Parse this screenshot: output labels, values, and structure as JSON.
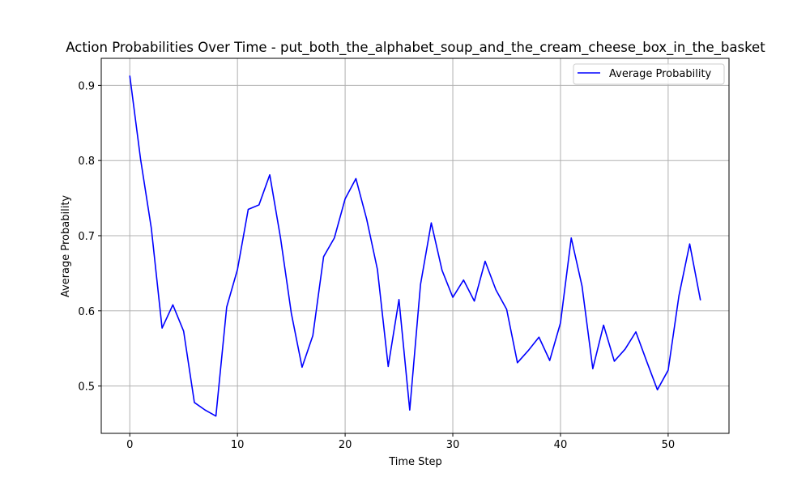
{
  "chart_data": {
    "type": "line",
    "title": "Action Probabilities Over Time - put_both_the_alphabet_soup_and_the_cream_cheese_box_in_the_basket",
    "xlabel": "Time Step",
    "ylabel": "Average Probability",
    "xlim": [
      -2.65,
      55.65
    ],
    "ylim": [
      0.437,
      0.936
    ],
    "x_ticks": [
      0,
      10,
      20,
      30,
      40,
      50
    ],
    "y_ticks": [
      0.5,
      0.6,
      0.7,
      0.8,
      0.9
    ],
    "grid": true,
    "legend_position": "top-right",
    "colors": {
      "series": "#0000ff",
      "grid": "#b0b0b0"
    },
    "series": [
      {
        "name": "Average Probability",
        "x": [
          0,
          1,
          2,
          3,
          4,
          5,
          6,
          7,
          8,
          9,
          10,
          11,
          12,
          13,
          14,
          15,
          16,
          17,
          18,
          19,
          20,
          21,
          22,
          23,
          24,
          25,
          26,
          27,
          28,
          29,
          30,
          31,
          32,
          33,
          34,
          35,
          36,
          37,
          38,
          39,
          40,
          41,
          42,
          43,
          44,
          45,
          46,
          47,
          48,
          49,
          50,
          51,
          52,
          53
        ],
        "values": [
          0.913,
          0.802,
          0.71,
          0.577,
          0.608,
          0.573,
          0.478,
          0.468,
          0.46,
          0.605,
          0.655,
          0.735,
          0.741,
          0.781,
          0.697,
          0.597,
          0.525,
          0.567,
          0.672,
          0.697,
          0.749,
          0.776,
          0.722,
          0.655,
          0.526,
          0.615,
          0.468,
          0.635,
          0.717,
          0.654,
          0.618,
          0.641,
          0.613,
          0.666,
          0.628,
          0.602,
          0.531,
          0.547,
          0.565,
          0.534,
          0.584,
          0.697,
          0.633,
          0.523,
          0.581,
          0.533,
          0.549,
          0.572,
          0.533,
          0.495,
          0.521,
          0.62,
          0.689,
          0.614
        ]
      }
    ]
  }
}
